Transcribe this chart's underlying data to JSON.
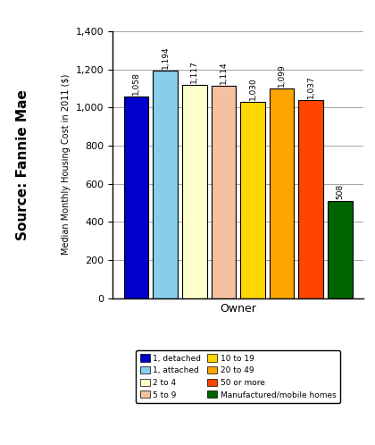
{
  "categories": [
    "1, detached",
    "1, attached",
    "2 to 4",
    "5 to 9",
    "10 to 19",
    "20 to 49",
    "50 or more",
    "Manufactured/mobile homes"
  ],
  "values": [
    1058,
    1194,
    1117,
    1114,
    1030,
    1099,
    1037,
    508
  ],
  "bar_colors": [
    "#0000CC",
    "#87CEEB",
    "#FFFFCC",
    "#F4C2A1",
    "#FFD700",
    "#FFA500",
    "#FF4500",
    "#006400"
  ],
  "bar_edgecolor": "#000000",
  "xlabel": "Owner",
  "ylabel": "Median Monthly Housing Cost in 2011 ($)",
  "ylim": [
    0,
    1400
  ],
  "yticks": [
    0,
    200,
    400,
    600,
    800,
    1000,
    1200,
    1400
  ],
  "source_text": "Source: Fannie Mae",
  "legend_entries": [
    {
      "label": "1, detached",
      "color": "#0000CC"
    },
    {
      "label": "1, attached",
      "color": "#87CEEB"
    },
    {
      "label": "2 to 4",
      "color": "#FFFFCC"
    },
    {
      "label": "5 to 9",
      "color": "#F4C2A1"
    },
    {
      "label": "10 to 19",
      "color": "#FFD700"
    },
    {
      "label": "20 to 49",
      "color": "#FFA500"
    },
    {
      "label": "50 or more",
      "color": "#FF4500"
    },
    {
      "label": "Manufactured/mobile homes",
      "color": "#006400"
    }
  ]
}
